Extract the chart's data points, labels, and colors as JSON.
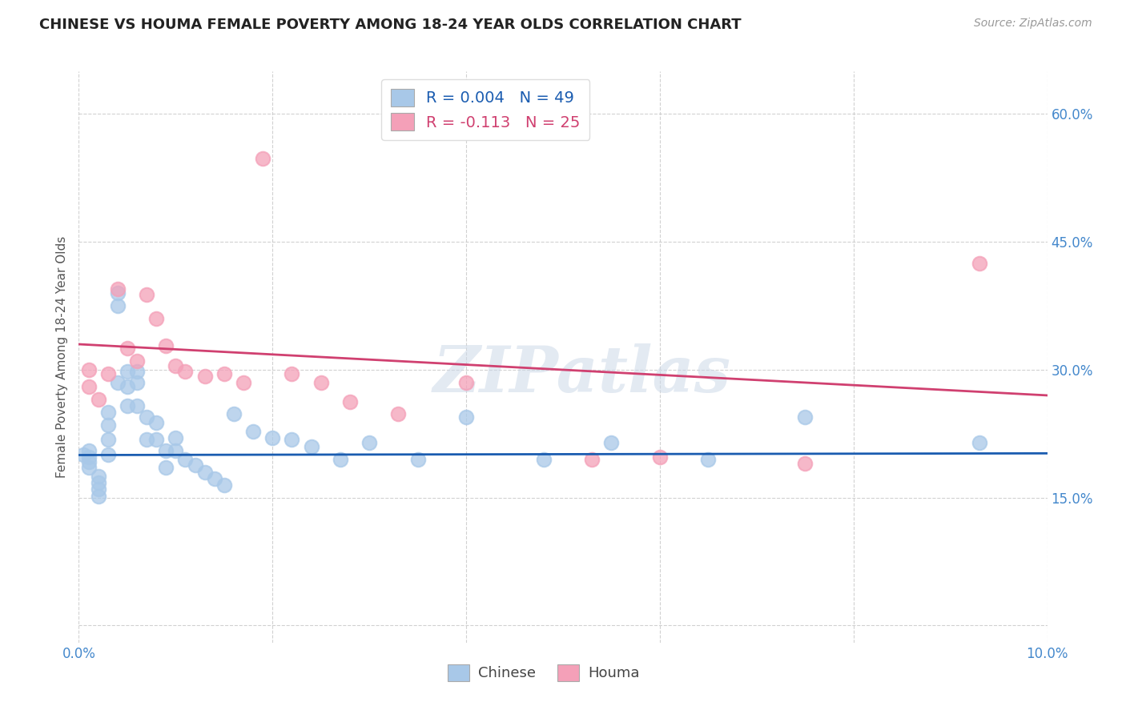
{
  "title": "CHINESE VS HOUMA FEMALE POVERTY AMONG 18-24 YEAR OLDS CORRELATION CHART",
  "source": "Source: ZipAtlas.com",
  "ylabel": "Female Poverty Among 18-24 Year Olds",
  "xlim": [
    0.0,
    0.1
  ],
  "ylim": [
    -0.02,
    0.65
  ],
  "x_ticks": [
    0.0,
    0.02,
    0.04,
    0.06,
    0.08,
    0.1
  ],
  "x_tick_labels": [
    "0.0%",
    "",
    "",
    "",
    "",
    "10.0%"
  ],
  "y_ticks": [
    0.0,
    0.15,
    0.3,
    0.45,
    0.6
  ],
  "y_tick_labels_right": [
    "",
    "15.0%",
    "30.0%",
    "45.0%",
    "60.0%"
  ],
  "legend_r_chinese": "R = 0.004",
  "legend_n_chinese": "N = 49",
  "legend_r_houma": "R = -0.113",
  "legend_n_houma": "N = 25",
  "chinese_color": "#a8c8e8",
  "houma_color": "#f4a0b8",
  "chinese_line_color": "#1a5cb0",
  "houma_line_color": "#d04070",
  "watermark": "ZIPatlas",
  "background_color": "#ffffff",
  "grid_color": "#cccccc",
  "chinese_x": [
    0.0005,
    0.001,
    0.001,
    0.001,
    0.001,
    0.002,
    0.002,
    0.002,
    0.002,
    0.003,
    0.003,
    0.003,
    0.003,
    0.004,
    0.004,
    0.004,
    0.005,
    0.005,
    0.005,
    0.006,
    0.006,
    0.006,
    0.007,
    0.007,
    0.008,
    0.008,
    0.009,
    0.009,
    0.01,
    0.01,
    0.011,
    0.012,
    0.013,
    0.014,
    0.015,
    0.016,
    0.018,
    0.02,
    0.022,
    0.024,
    0.027,
    0.03,
    0.035,
    0.04,
    0.048,
    0.055,
    0.065,
    0.075,
    0.093
  ],
  "chinese_y": [
    0.2,
    0.205,
    0.198,
    0.192,
    0.185,
    0.175,
    0.168,
    0.16,
    0.152,
    0.25,
    0.235,
    0.218,
    0.2,
    0.39,
    0.375,
    0.285,
    0.298,
    0.28,
    0.258,
    0.298,
    0.285,
    0.258,
    0.245,
    0.218,
    0.238,
    0.218,
    0.205,
    0.185,
    0.22,
    0.205,
    0.195,
    0.188,
    0.18,
    0.172,
    0.165,
    0.248,
    0.228,
    0.22,
    0.218,
    0.21,
    0.195,
    0.215,
    0.195,
    0.245,
    0.195,
    0.215,
    0.195,
    0.245,
    0.215
  ],
  "houma_x": [
    0.001,
    0.001,
    0.002,
    0.003,
    0.004,
    0.005,
    0.006,
    0.007,
    0.008,
    0.009,
    0.01,
    0.011,
    0.013,
    0.015,
    0.017,
    0.019,
    0.022,
    0.025,
    0.028,
    0.033,
    0.04,
    0.053,
    0.06,
    0.075,
    0.093
  ],
  "houma_y": [
    0.3,
    0.28,
    0.265,
    0.295,
    0.395,
    0.325,
    0.31,
    0.388,
    0.36,
    0.328,
    0.305,
    0.298,
    0.292,
    0.295,
    0.285,
    0.548,
    0.295,
    0.285,
    0.262,
    0.248,
    0.285,
    0.195,
    0.198,
    0.19,
    0.425
  ]
}
